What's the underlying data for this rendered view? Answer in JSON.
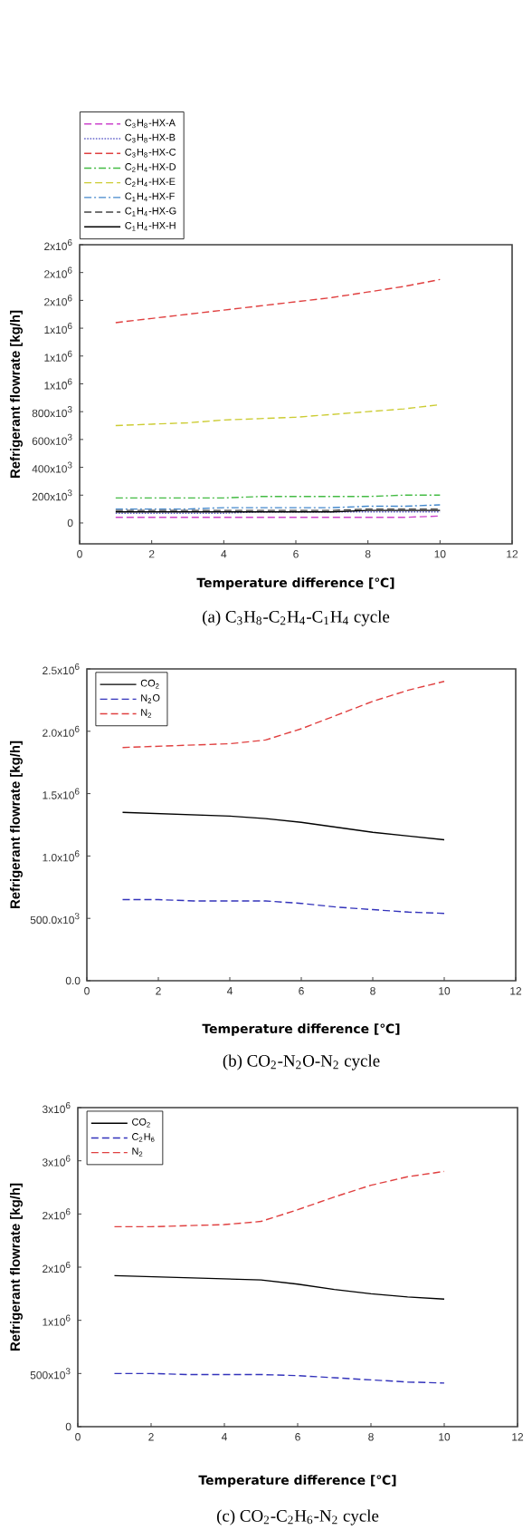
{
  "chart_data": [
    {
      "type": "line",
      "title": "(a)  C$_{3}$H$_{8}$-C$_{2}$H$_{4}$-C$_{1}$H$_{4}$  cycle",
      "xlabel": "Temperature difference  [℃]",
      "ylabel": "Refrigerant  flowrate [kg/h]",
      "x": [
        1,
        2,
        3,
        4,
        5,
        6,
        7,
        8,
        9,
        10
      ],
      "xlim": [
        0,
        12
      ],
      "xticks": [
        0,
        2,
        4,
        6,
        8,
        10,
        12
      ],
      "ylim": [
        -150000,
        2000000
      ],
      "yticks": [
        0,
        {
          "value": 200000,
          "label": "200x10$^{3}$"
        },
        {
          "value": 400000,
          "label": "400x10$^{3}$"
        },
        {
          "value": 600000,
          "label": "600x10$^{3}$"
        },
        {
          "value": 800000,
          "label": "800x10$^{3}$"
        },
        {
          "value": 1000000,
          "label": "1x10$^{6}$"
        },
        {
          "value": 1200000,
          "label": "1x10$^{6}$"
        },
        {
          "value": 1400000,
          "label": "1x10$^{6}$"
        },
        {
          "value": 1600000,
          "label": "2x10$^{6}$"
        },
        {
          "value": 1800000,
          "label": "2x10$^{6}$"
        },
        {
          "value": 2000000,
          "label": "2x10$^{6}$"
        }
      ],
      "legend": "top",
      "series": [
        {
          "name": "C$_{3}$H$_{8}$-HX-A",
          "color": "#cc44cc",
          "line_style": "dashed",
          "values": [
            40000,
            40000,
            40000,
            40000,
            40000,
            40000,
            40000,
            40000,
            40000,
            50000
          ]
        },
        {
          "name": "C$_{3}$H$_{8}$-HX-B",
          "color": "#6666cc",
          "line_style": "dotted",
          "values": [
            70000,
            70000,
            70000,
            70000,
            80000,
            80000,
            80000,
            80000,
            80000,
            80000
          ]
        },
        {
          "name": "C$_{3}$H$_{8}$-HX-C",
          "color": "#e04040",
          "line_style": "dashed",
          "values": [
            1440000,
            1470000,
            1500000,
            1530000,
            1560000,
            1590000,
            1620000,
            1660000,
            1700000,
            1750000
          ]
        },
        {
          "name": "C$_{2}$H$_{4}$-HX-D",
          "color": "#44bb44",
          "line_style": "dashdot",
          "values": [
            180000,
            180000,
            180000,
            180000,
            190000,
            190000,
            190000,
            190000,
            200000,
            200000
          ]
        },
        {
          "name": "C$_{2}$H$_{4}$-HX-E",
          "color": "#cccc33",
          "line_style": "dashed",
          "values": [
            700000,
            710000,
            720000,
            740000,
            750000,
            760000,
            780000,
            800000,
            820000,
            850000
          ]
        },
        {
          "name": "C$_{1}$H$_{4}$-HX-F",
          "color": "#4488cc",
          "line_style": "dashdot",
          "values": [
            100000,
            100000,
            100000,
            110000,
            110000,
            110000,
            110000,
            120000,
            120000,
            130000
          ]
        },
        {
          "name": "C$_{1}$H$_{4}$-HX-G",
          "color": "#444444",
          "line_style": "dashed",
          "values": [
            90000,
            90000,
            90000,
            90000,
            90000,
            90000,
            90000,
            100000,
            100000,
            100000
          ]
        },
        {
          "name": "C$_{1}$H$_{4}$-HX-H",
          "color": "#000000",
          "line_style": "solid",
          "values": [
            80000,
            80000,
            80000,
            80000,
            80000,
            80000,
            80000,
            90000,
            90000,
            90000
          ]
        }
      ]
    },
    {
      "type": "line",
      "title": "(b)  CO$_{2}$-N$_{2}$O-N$_{2}$  cycle",
      "xlabel": "Temperature difference  [℃]",
      "ylabel": "Refrigerant  flowrate [kg/h]",
      "x": [
        1,
        2,
        3,
        4,
        5,
        6,
        7,
        8,
        9,
        10
      ],
      "xlim": [
        0,
        12
      ],
      "xticks": [
        0,
        2,
        4,
        6,
        8,
        10,
        12
      ],
      "ylim": [
        0,
        2500000
      ],
      "yticks": [
        {
          "value": 0,
          "label": "0.0"
        },
        {
          "value": 500000,
          "label": "500.0x10$^{3}$"
        },
        {
          "value": 1000000,
          "label": "1.0x10$^{6}$"
        },
        {
          "value": 1500000,
          "label": "1.5x10$^{6}$"
        },
        {
          "value": 2000000,
          "label": "2.0x10$^{6}$"
        },
        {
          "value": 2500000,
          "label": "2.5x10$^{6}$"
        }
      ],
      "legend": "top left",
      "series": [
        {
          "name": "CO$_{2}$",
          "color": "#000000",
          "line_style": "solid",
          "values": [
            1350000,
            1340000,
            1330000,
            1320000,
            1300000,
            1270000,
            1230000,
            1190000,
            1160000,
            1130000
          ]
        },
        {
          "name": "N$_{2}$O",
          "color": "#3333bb",
          "line_style": "dashed",
          "values": [
            650000,
            650000,
            640000,
            640000,
            640000,
            620000,
            590000,
            570000,
            550000,
            540000
          ]
        },
        {
          "name": "N$_{2}$",
          "color": "#e04040",
          "line_style": "dashed",
          "values": [
            1870000,
            1880000,
            1890000,
            1900000,
            1930000,
            2020000,
            2130000,
            2240000,
            2330000,
            2400000
          ]
        }
      ]
    },
    {
      "type": "line",
      "title": "(c)  CO$_{2}$-C$_{2}$H$_{6}$-N$_{2}$  cycle",
      "xlabel": "Temperature difference  [℃]",
      "ylabel": "Refrigerant  flowrate [kg/h]",
      "x": [
        1,
        2,
        3,
        4,
        5,
        6,
        7,
        8,
        9,
        10
      ],
      "xlim": [
        0,
        12
      ],
      "xticks": [
        0,
        2,
        4,
        6,
        8,
        10,
        12
      ],
      "ylim": [
        0,
        3000000
      ],
      "yticks": [
        0,
        {
          "value": 500000,
          "label": "500x10$^{3}$"
        },
        {
          "value": 1000000,
          "label": "1x10$^{6}$"
        },
        {
          "value": 1500000,
          "label": "2x10$^{6}$"
        },
        {
          "value": 2000000,
          "label": "2x10$^{6}$"
        },
        {
          "value": 2500000,
          "label": "3x10$^{6}$"
        },
        {
          "value": 3000000,
          "label": "3x10$^{6}$"
        }
      ],
      "legend": "top left",
      "series": [
        {
          "name": "CO$_{2}$",
          "color": "#000000",
          "line_style": "solid",
          "values": [
            1420000,
            1410000,
            1400000,
            1390000,
            1380000,
            1340000,
            1290000,
            1250000,
            1220000,
            1200000
          ]
        },
        {
          "name": "C$_{2}$H$_{6}$",
          "color": "#3333bb",
          "line_style": "dashed",
          "values": [
            500000,
            500000,
            490000,
            490000,
            490000,
            480000,
            460000,
            440000,
            420000,
            410000
          ]
        },
        {
          "name": "N$_{2}$",
          "color": "#e04040",
          "line_style": "dashed",
          "values": [
            1880000,
            1880000,
            1890000,
            1900000,
            1930000,
            2040000,
            2160000,
            2270000,
            2350000,
            2400000
          ]
        }
      ]
    }
  ]
}
